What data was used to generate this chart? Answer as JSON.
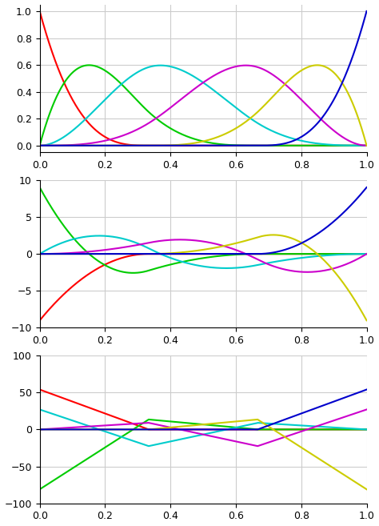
{
  "knot_vector": [
    0,
    0,
    0,
    0,
    0.333333,
    0.666667,
    1,
    1,
    1,
    1
  ],
  "n_points": 1000,
  "degree": 3,
  "colors": [
    "#ff0000",
    "#00cc00",
    "#00cccc",
    "#cc00cc",
    "#cccc00",
    "#0000cc"
  ],
  "plot1_ylim": [
    -0.05,
    1.05
  ],
  "plot1_yticks": [
    0,
    0.2,
    0.4,
    0.6,
    0.8,
    1.0
  ],
  "plot2_ylim": [
    -10,
    10
  ],
  "plot2_yticks": [
    -10,
    -5,
    0,
    5,
    10
  ],
  "plot3_ylim": [
    -100,
    100
  ],
  "plot3_yticks": [
    -100,
    -50,
    0,
    50,
    100
  ],
  "xticks": [
    0,
    0.2,
    0.4,
    0.6,
    0.8,
    1.0
  ],
  "figsize": [
    4.74,
    6.57
  ],
  "dpi": 100,
  "bg_color": "#ffffff",
  "grid_color": "#cccccc",
  "linewidth": 1.5
}
